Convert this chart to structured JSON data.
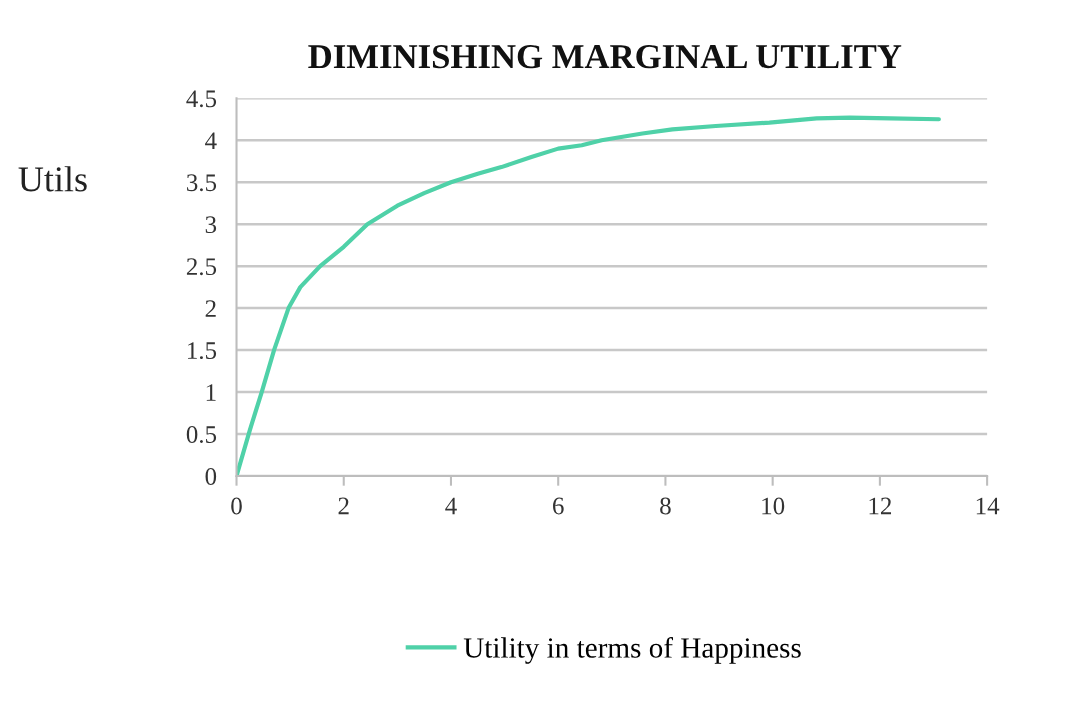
{
  "chart_data": {
    "type": "line",
    "title": "DIMINISHING MARGINAL UTILITY",
    "ylabel": "Utils",
    "x": [
      0,
      0.25,
      0.47,
      0.7,
      0.97,
      1.19,
      1.56,
      2,
      2.44,
      3,
      3.5,
      4,
      4.5,
      4.94,
      5.5,
      6,
      6.44,
      6.81,
      7.57,
      8.13,
      8.94,
      9.94,
      10.82,
      11.44,
      12.2,
      13.1
    ],
    "series": [
      {
        "name": "Utility in terms of Happiness",
        "color": "#4fd1a8",
        "values": [
          0,
          0.55,
          1.0,
          1.5,
          2.0,
          2.25,
          2.5,
          2.73,
          3.0,
          3.22,
          3.37,
          3.5,
          3.6,
          3.68,
          3.8,
          3.9,
          3.94,
          4.0,
          4.08,
          4.13,
          4.17,
          4.21,
          4.26,
          4.27,
          4.26,
          4.25
        ]
      }
    ],
    "xlim": [
      0,
      14
    ],
    "xticks": [
      0,
      2,
      4,
      6,
      8,
      10,
      12,
      14
    ],
    "ylim": [
      0,
      4.5
    ],
    "yticks": [
      0,
      0.5,
      1,
      1.5,
      2,
      2.5,
      3,
      3.5,
      4,
      4.5
    ],
    "grid": "y",
    "legend": "bottom",
    "line_style": "solid"
  }
}
